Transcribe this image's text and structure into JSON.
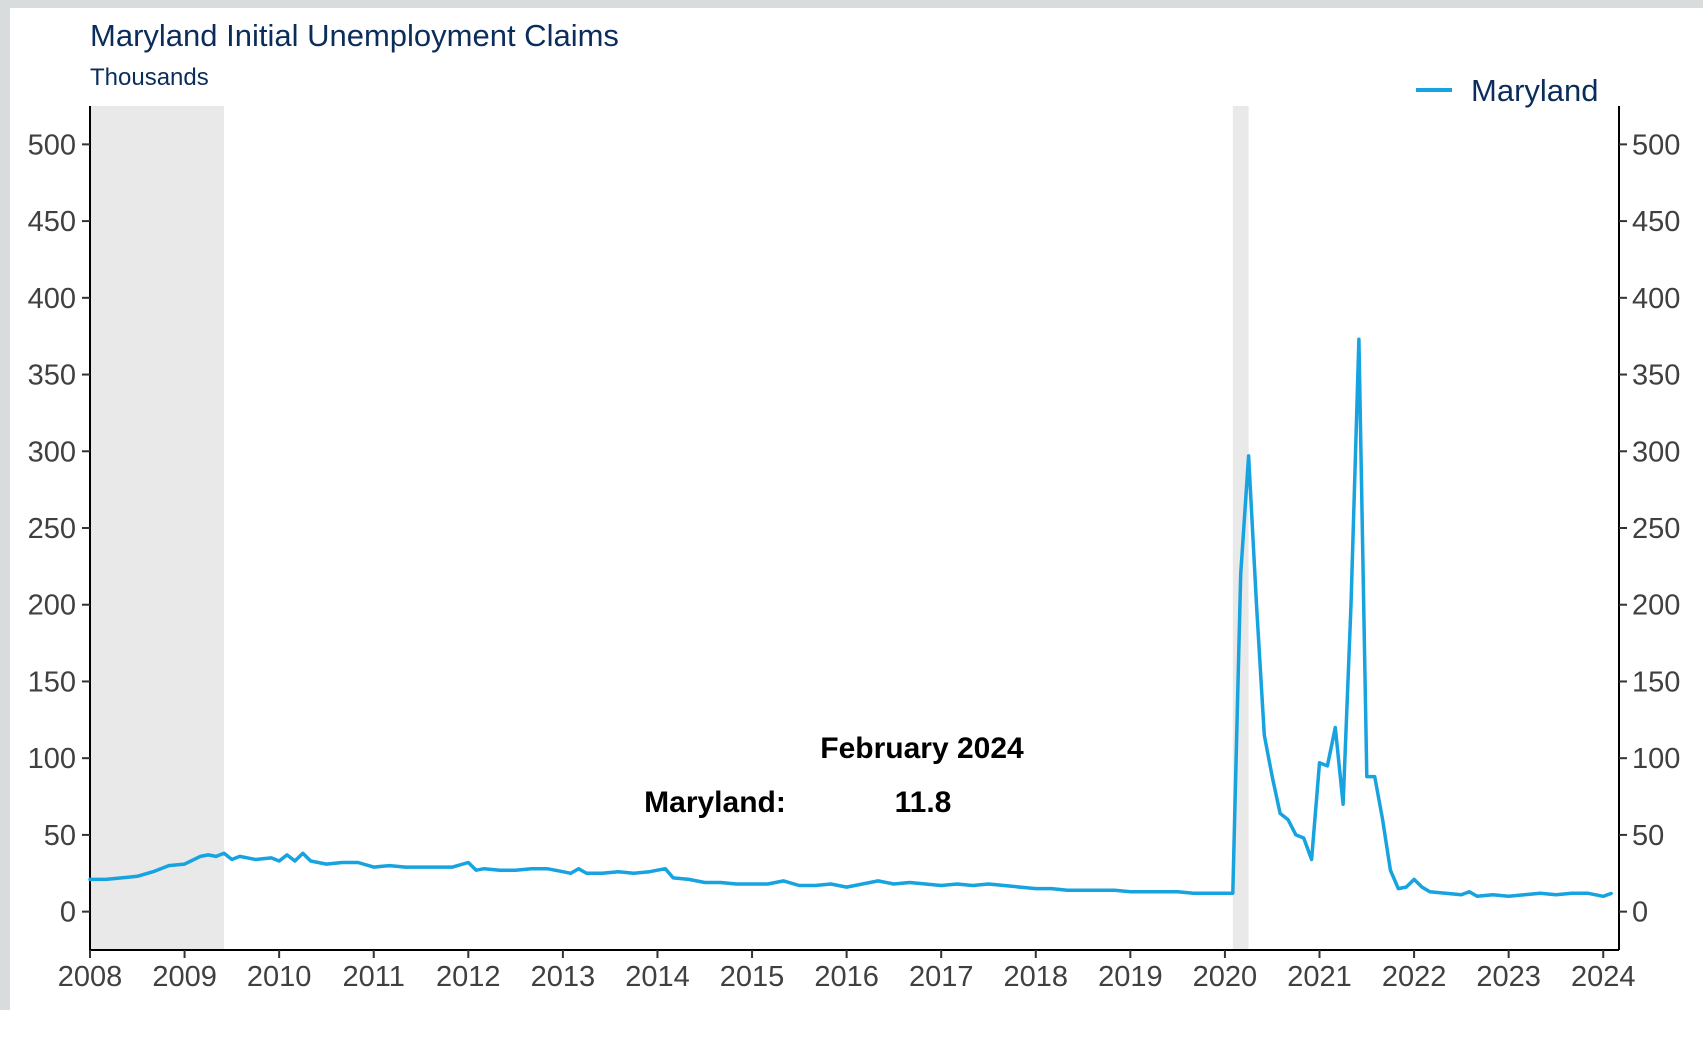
{
  "chart_data": {
    "type": "line",
    "title": "Maryland Initial Unemployment Claims",
    "subtitle": "Thousands",
    "xlim": [
      "2008-01-01",
      "2024-03-01"
    ],
    "ylim": [
      -25,
      525
    ],
    "y_ticks": [
      0,
      50,
      100,
      150,
      200,
      250,
      300,
      350,
      400,
      450,
      500
    ],
    "y_tick_labels": [
      "0",
      "50",
      "100",
      "150",
      "200",
      "250",
      "300",
      "350",
      "400",
      "450",
      "500"
    ],
    "x_ticks": [
      "2008",
      "2009",
      "2010",
      "2011",
      "2012",
      "2013",
      "2014",
      "2015",
      "2016",
      "2017",
      "2018",
      "2019",
      "2020",
      "2021",
      "2022",
      "2023",
      "2024"
    ],
    "grid": false,
    "legend_position": "top-right",
    "recessions": [
      {
        "start": "2008-01",
        "end": "2009-06"
      },
      {
        "start": "2020-02",
        "end": "2020-04"
      }
    ],
    "series": [
      {
        "name": "Maryland",
        "color": "#16a3e0",
        "points": [
          [
            "2008-01",
            21
          ],
          [
            "2008-03",
            21
          ],
          [
            "2008-05",
            22
          ],
          [
            "2008-07",
            23
          ],
          [
            "2008-09",
            26
          ],
          [
            "2008-11",
            30
          ],
          [
            "2009-01",
            31
          ],
          [
            "2009-03",
            36
          ],
          [
            "2009-04",
            37
          ],
          [
            "2009-05",
            36
          ],
          [
            "2009-06",
            38
          ],
          [
            "2009-07",
            34
          ],
          [
            "2009-08",
            36
          ],
          [
            "2009-10",
            34
          ],
          [
            "2009-12",
            35
          ],
          [
            "2010-01",
            33
          ],
          [
            "2010-02",
            37
          ],
          [
            "2010-03",
            33
          ],
          [
            "2010-04",
            38
          ],
          [
            "2010-05",
            33
          ],
          [
            "2010-07",
            31
          ],
          [
            "2010-09",
            32
          ],
          [
            "2010-11",
            32
          ],
          [
            "2011-01",
            29
          ],
          [
            "2011-03",
            30
          ],
          [
            "2011-05",
            29
          ],
          [
            "2011-07",
            29
          ],
          [
            "2011-09",
            29
          ],
          [
            "2011-11",
            29
          ],
          [
            "2012-01",
            32
          ],
          [
            "2012-02",
            27
          ],
          [
            "2012-03",
            28
          ],
          [
            "2012-05",
            27
          ],
          [
            "2012-07",
            27
          ],
          [
            "2012-09",
            28
          ],
          [
            "2012-11",
            28
          ],
          [
            "2013-01",
            26
          ],
          [
            "2013-02",
            25
          ],
          [
            "2013-03",
            28
          ],
          [
            "2013-04",
            25
          ],
          [
            "2013-06",
            25
          ],
          [
            "2013-08",
            26
          ],
          [
            "2013-10",
            25
          ],
          [
            "2013-12",
            26
          ],
          [
            "2014-02",
            28
          ],
          [
            "2014-03",
            22
          ],
          [
            "2014-05",
            21
          ],
          [
            "2014-07",
            19
          ],
          [
            "2014-09",
            19
          ],
          [
            "2014-11",
            18
          ],
          [
            "2015-01",
            18
          ],
          [
            "2015-03",
            18
          ],
          [
            "2015-05",
            20
          ],
          [
            "2015-07",
            17
          ],
          [
            "2015-09",
            17
          ],
          [
            "2015-11",
            18
          ],
          [
            "2016-01",
            16
          ],
          [
            "2016-03",
            18
          ],
          [
            "2016-05",
            20
          ],
          [
            "2016-07",
            18
          ],
          [
            "2016-09",
            19
          ],
          [
            "2016-11",
            18
          ],
          [
            "2017-01",
            17
          ],
          [
            "2017-03",
            18
          ],
          [
            "2017-05",
            17
          ],
          [
            "2017-07",
            18
          ],
          [
            "2017-09",
            17
          ],
          [
            "2017-11",
            16
          ],
          [
            "2018-01",
            15
          ],
          [
            "2018-03",
            15
          ],
          [
            "2018-05",
            14
          ],
          [
            "2018-07",
            14
          ],
          [
            "2018-09",
            14
          ],
          [
            "2018-11",
            14
          ],
          [
            "2019-01",
            13
          ],
          [
            "2019-03",
            13
          ],
          [
            "2019-05",
            13
          ],
          [
            "2019-07",
            13
          ],
          [
            "2019-09",
            12
          ],
          [
            "2019-11",
            12
          ],
          [
            "2020-01",
            12
          ],
          [
            "2020-02",
            12
          ],
          [
            "2020-03",
            220
          ],
          [
            "2020-04",
            297
          ],
          [
            "2020-05",
            200
          ],
          [
            "2020-06",
            115
          ],
          [
            "2020-07",
            88
          ],
          [
            "2020-08",
            64
          ],
          [
            "2020-09",
            60
          ],
          [
            "2020-10",
            50
          ],
          [
            "2020-11",
            48
          ],
          [
            "2020-12",
            34
          ],
          [
            "2021-01",
            97
          ],
          [
            "2021-02",
            95
          ],
          [
            "2021-03",
            120
          ],
          [
            "2021-04",
            70
          ],
          [
            "2021-05",
            200
          ],
          [
            "2021-06",
            373
          ],
          [
            "2021-07",
            88
          ],
          [
            "2021-08",
            88
          ],
          [
            "2021-09",
            60
          ],
          [
            "2021-10",
            27
          ],
          [
            "2021-11",
            15
          ],
          [
            "2021-12",
            16
          ],
          [
            "2022-01",
            21
          ],
          [
            "2022-02",
            16
          ],
          [
            "2022-03",
            13
          ],
          [
            "2022-05",
            12
          ],
          [
            "2022-07",
            11
          ],
          [
            "2022-08",
            13
          ],
          [
            "2022-09",
            10
          ],
          [
            "2022-11",
            11
          ],
          [
            "2023-01",
            10
          ],
          [
            "2023-03",
            11
          ],
          [
            "2023-05",
            12
          ],
          [
            "2023-07",
            11
          ],
          [
            "2023-09",
            12
          ],
          [
            "2023-11",
            12
          ],
          [
            "2024-01",
            10
          ],
          [
            "2024-02",
            11.8
          ]
        ]
      }
    ],
    "annotation": {
      "heading": "February 2024",
      "label": "Maryland:",
      "value": "11.8"
    }
  }
}
